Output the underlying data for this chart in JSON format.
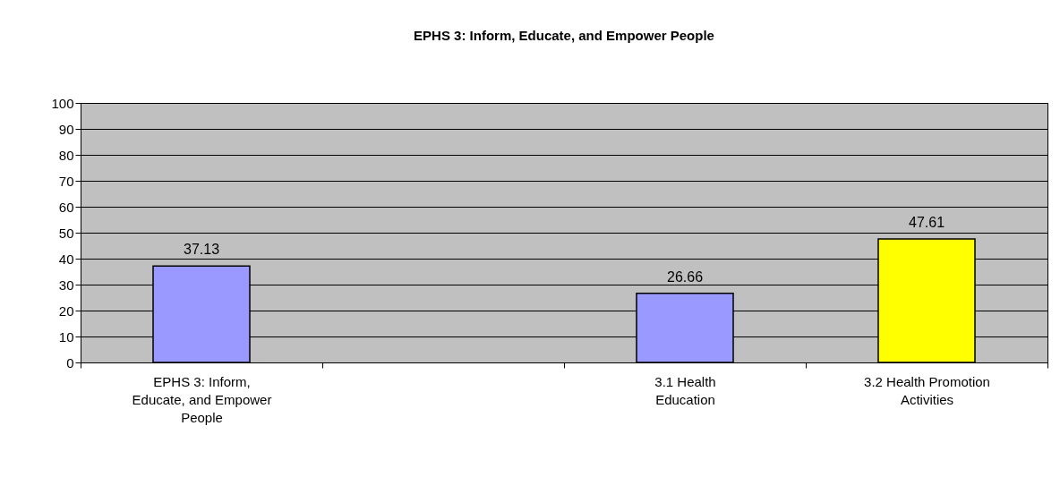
{
  "chart_data": {
    "type": "bar",
    "title": "EPHS 3:  Inform, Educate, and Empower People",
    "categories": [
      "EPHS 3:  Inform, Educate, and Empower People",
      null,
      "3.1   Health Education",
      "3.2 Health Promotion Activities"
    ],
    "values": [
      37.13,
      null,
      26.66,
      47.61
    ],
    "colors": [
      "#9999ff",
      null,
      "#9999ff",
      "#ffff00"
    ],
    "ylim": [
      0,
      100
    ],
    "yticks": [
      0,
      10,
      20,
      30,
      40,
      50,
      60,
      70,
      80,
      90,
      100
    ],
    "grid": "y",
    "data_labels": true
  }
}
